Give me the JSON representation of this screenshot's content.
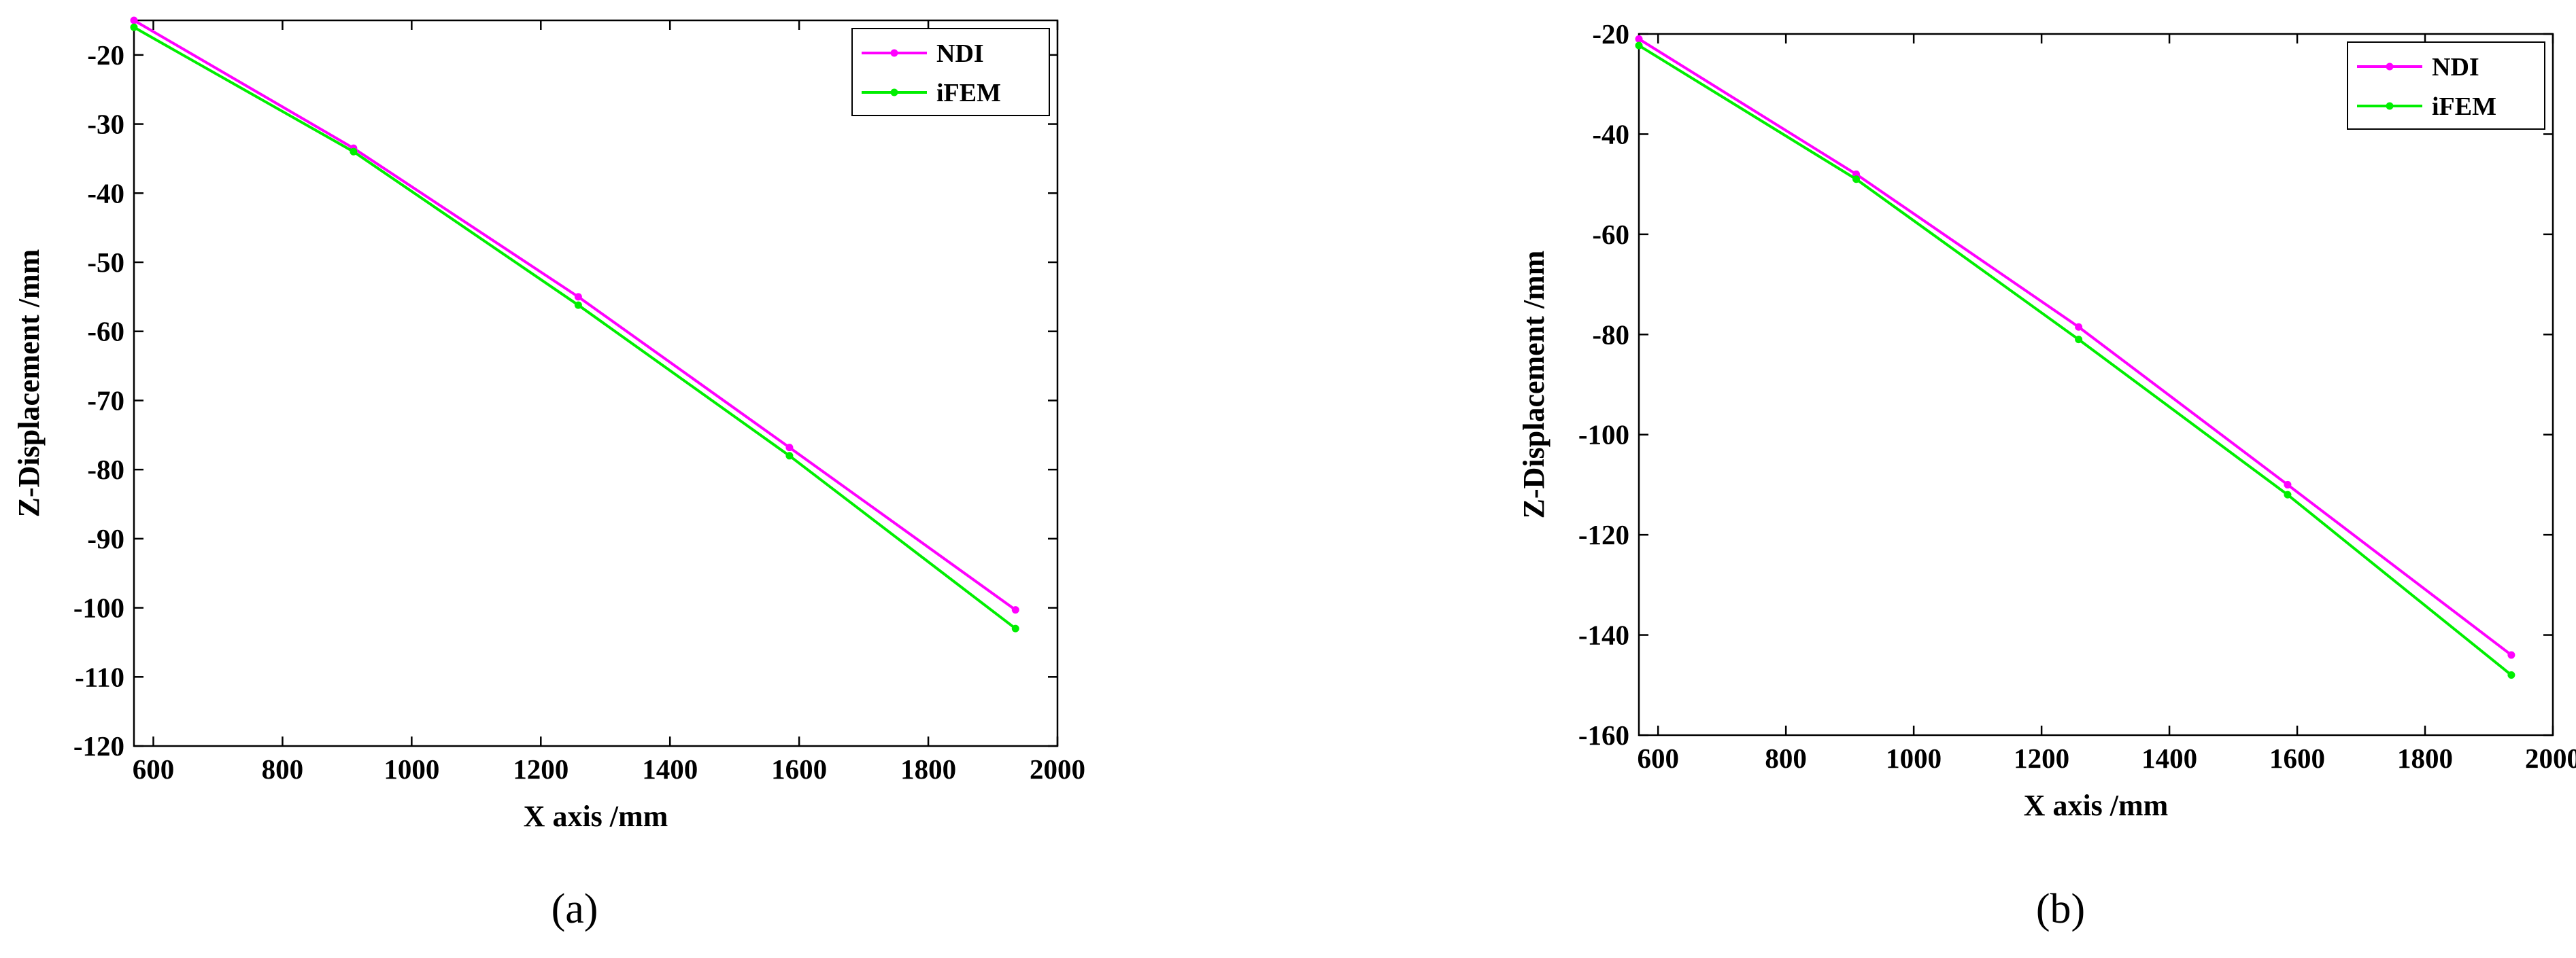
{
  "chart_data": [
    {
      "type": "line",
      "panel_label": "(a)",
      "xlabel": "X axis /mm",
      "ylabel": "Z-Displacement /mm",
      "xlim": [
        570,
        2000
      ],
      "ylim": [
        -120,
        -15
      ],
      "xticks": [
        600,
        800,
        1000,
        1200,
        1400,
        1600,
        1800,
        2000
      ],
      "yticks": [
        -20,
        -30,
        -40,
        -50,
        -60,
        -70,
        -80,
        -90,
        -100,
        -110,
        -120
      ],
      "legend_position": "top-right",
      "grid": false,
      "series": [
        {
          "name": "NDI",
          "color": "#ff00ff",
          "x": [
            570,
            910,
            1258,
            1585,
            1935
          ],
          "y": [
            -15,
            -33.5,
            -55,
            -76.8,
            -100.3
          ]
        },
        {
          "name": "iFEM",
          "color": "#00ee00",
          "x": [
            570,
            910,
            1258,
            1585,
            1935
          ],
          "y": [
            -16,
            -34,
            -56.2,
            -78,
            -103
          ]
        }
      ]
    },
    {
      "type": "line",
      "panel_label": "(b)",
      "xlabel": "X axis /mm",
      "ylabel": "Z-Displacement /mm",
      "xlim": [
        570,
        2000
      ],
      "ylim": [
        -160,
        -20
      ],
      "xticks": [
        600,
        800,
        1000,
        1200,
        1400,
        1600,
        1800,
        2000
      ],
      "yticks": [
        -20,
        -40,
        -60,
        -80,
        -100,
        -120,
        -140,
        -160
      ],
      "legend_position": "top-right",
      "grid": false,
      "series": [
        {
          "name": "NDI",
          "color": "#ff00ff",
          "x": [
            570,
            910,
            1258,
            1585,
            1935
          ],
          "y": [
            -21,
            -48,
            -78.5,
            -110,
            -144
          ]
        },
        {
          "name": "iFEM",
          "color": "#00ee00",
          "x": [
            570,
            910,
            1258,
            1585,
            1935
          ],
          "y": [
            -22.3,
            -49,
            -81,
            -112,
            -148
          ]
        }
      ]
    }
  ]
}
